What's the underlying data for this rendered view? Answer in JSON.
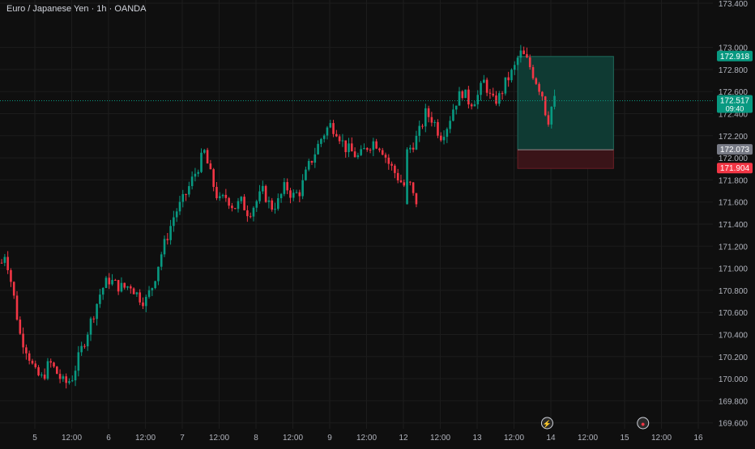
{
  "header": {
    "symbol_title": "Euro / Japanese Yen · 1h · OANDA"
  },
  "colors": {
    "background": "#0f0f0f",
    "grid": "#1c1c1c",
    "up": "#089981",
    "down": "#f23645",
    "axis_text": "#b2b5be",
    "current_price_line": "#089981",
    "target_zone": "#0f3a33",
    "stop_zone": "#3a1418"
  },
  "chart_data": {
    "type": "candlestick",
    "title": "Euro / Japanese Yen · 1h · OANDA",
    "y_ticks": [
      "173.400",
      "173.000",
      "172.800",
      "172.600",
      "172.400",
      "172.200",
      "172.000",
      "171.800",
      "171.600",
      "171.400",
      "171.200",
      "171.000",
      "170.800",
      "170.600",
      "170.400",
      "170.200",
      "170.000",
      "169.800",
      "169.600"
    ],
    "x_ticks": [
      {
        "label": "5",
        "day": 5.0
      },
      {
        "label": "12:00",
        "day": 5.5
      },
      {
        "label": "6",
        "day": 6.0
      },
      {
        "label": "12:00",
        "day": 6.5
      },
      {
        "label": "7",
        "day": 7.0
      },
      {
        "label": "12:00",
        "day": 7.5
      },
      {
        "label": "8",
        "day": 8.0
      },
      {
        "label": "12:00",
        "day": 8.5
      },
      {
        "label": "9",
        "day": 9.0
      },
      {
        "label": "12:00",
        "day": 9.5
      },
      {
        "label": "12",
        "day": 12.0
      },
      {
        "label": "12:00",
        "day": 12.5
      },
      {
        "label": "13",
        "day": 13.0
      },
      {
        "label": "12:00",
        "day": 13.5
      },
      {
        "label": "14",
        "day": 14.0
      },
      {
        "label": "12:00",
        "day": 14.5
      },
      {
        "label": "15",
        "day": 15.0
      },
      {
        "label": "12:00",
        "day": 15.5
      },
      {
        "label": "16",
        "day": 16.0
      }
    ],
    "close_path": [
      [
        4.55,
        171.05
      ],
      [
        4.6,
        171.15
      ],
      [
        4.7,
        170.8
      ],
      [
        4.8,
        170.4
      ],
      [
        4.9,
        170.25
      ],
      [
        5.0,
        170.05
      ],
      [
        5.1,
        170.0
      ],
      [
        5.2,
        170.15
      ],
      [
        5.3,
        170.05
      ],
      [
        5.4,
        169.95
      ],
      [
        5.5,
        170.0
      ],
      [
        5.6,
        170.2
      ],
      [
        5.7,
        170.4
      ],
      [
        5.8,
        170.6
      ],
      [
        5.9,
        170.8
      ],
      [
        6.0,
        170.9
      ],
      [
        6.1,
        170.85
      ],
      [
        6.2,
        170.82
      ],
      [
        6.3,
        170.85
      ],
      [
        6.4,
        170.75
      ],
      [
        6.5,
        170.7
      ],
      [
        6.6,
        170.85
      ],
      [
        6.7,
        171.1
      ],
      [
        6.8,
        171.3
      ],
      [
        6.9,
        171.5
      ],
      [
        7.0,
        171.6
      ],
      [
        7.1,
        171.75
      ],
      [
        7.2,
        171.9
      ],
      [
        7.3,
        172.05
      ],
      [
        7.4,
        171.8
      ],
      [
        7.5,
        171.6
      ],
      [
        7.6,
        171.65
      ],
      [
        7.7,
        171.55
      ],
      [
        7.8,
        171.6
      ],
      [
        7.9,
        171.5
      ],
      [
        8.0,
        171.6
      ],
      [
        8.1,
        171.7
      ],
      [
        8.2,
        171.55
      ],
      [
        8.3,
        171.6
      ],
      [
        8.4,
        171.75
      ],
      [
        8.5,
        171.65
      ],
      [
        8.6,
        171.7
      ],
      [
        8.7,
        171.9
      ],
      [
        8.8,
        172.05
      ],
      [
        8.9,
        172.2
      ],
      [
        9.0,
        172.3
      ],
      [
        9.1,
        172.25
      ],
      [
        9.2,
        172.1
      ],
      [
        9.3,
        172.05
      ],
      [
        9.4,
        172.0
      ],
      [
        9.5,
        172.1
      ],
      [
        9.6,
        172.15
      ],
      [
        9.7,
        172.1
      ],
      [
        9.8,
        171.95
      ],
      [
        9.9,
        171.85
      ],
      [
        10.0,
        171.75
      ],
      [
        10.1,
        171.75
      ],
      [
        10.15,
        171.6
      ],
      [
        12.05,
        172.05
      ],
      [
        12.2,
        172.2
      ],
      [
        12.3,
        172.4
      ],
      [
        12.4,
        172.35
      ],
      [
        12.5,
        172.2
      ],
      [
        12.6,
        172.3
      ],
      [
        12.7,
        172.5
      ],
      [
        12.8,
        172.6
      ],
      [
        12.9,
        172.5
      ],
      [
        13.0,
        172.55
      ],
      [
        13.1,
        172.7
      ],
      [
        13.2,
        172.5
      ],
      [
        13.3,
        172.55
      ],
      [
        13.4,
        172.7
      ],
      [
        13.5,
        172.8
      ],
      [
        13.55,
        172.9
      ],
      [
        13.6,
        172.95
      ],
      [
        13.7,
        172.85
      ],
      [
        13.8,
        172.7
      ],
      [
        13.9,
        172.55
      ],
      [
        13.95,
        172.3
      ],
      [
        14.0,
        172.45
      ],
      [
        14.05,
        172.52
      ]
    ],
    "current_price": {
      "value": 172.517,
      "label": "172.517",
      "countdown": "09:40"
    },
    "position": {
      "type": "long",
      "target": {
        "value": 172.918,
        "label": "172.918"
      },
      "entry": {
        "value": 172.073,
        "label": "172.073"
      },
      "stop": {
        "value": 171.904,
        "label": "171.904"
      },
      "start_day": 13.55,
      "end_day": 14.85
    },
    "markers": [
      {
        "name": "economic-event-icon",
        "day": 13.95,
        "glyph": "⚡"
      },
      {
        "name": "earnings-event-icon",
        "day": 15.25,
        "glyph": "●"
      }
    ]
  }
}
